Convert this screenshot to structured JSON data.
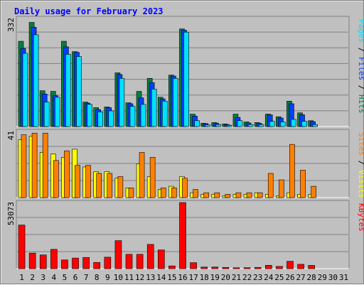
{
  "chart_data": {
    "type": "bar",
    "title": "Daily usage for February 2023",
    "categories": [
      "1",
      "2",
      "3",
      "4",
      "5",
      "6",
      "7",
      "8",
      "9",
      "10",
      "11",
      "12",
      "13",
      "14",
      "15",
      "16",
      "17",
      "18",
      "19",
      "20",
      "21",
      "22",
      "23",
      "24",
      "25",
      "26",
      "27",
      "28",
      "29",
      "30",
      "31"
    ],
    "weekend_days": [
      "4",
      "5",
      "11",
      "12",
      "18",
      "19",
      "25",
      "26"
    ],
    "panels": [
      {
        "name": "hits-files-pages",
        "ymax_label": "332",
        "ymax": 332,
        "series": [
          {
            "name": "Hits",
            "color": "#008040",
            "values": [
              262,
              320,
              110,
              108,
              262,
              230,
              75,
              58,
              60,
              165,
              73,
              108,
              148,
              90,
              158,
              300,
              38,
              10,
              12,
              8,
              38,
              14,
              12,
              38,
              30,
              78,
              42,
              18,
              0,
              0,
              0
            ]
          },
          {
            "name": "Files",
            "color": "#0040ff",
            "values": [
              240,
              305,
              100,
              95,
              245,
              228,
              72,
              52,
              58,
              160,
              70,
              88,
              135,
              85,
              155,
              296,
              32,
              9,
              10,
              6,
              28,
              11,
              10,
              36,
              26,
              70,
              36,
              15,
              0,
              0,
              0
            ]
          },
          {
            "name": "Pages",
            "color": "#00e0ff",
            "values": [
              225,
              282,
              75,
              90,
              222,
              215,
              68,
              45,
              48,
              148,
              62,
              68,
              115,
              78,
              148,
              290,
              18,
              5,
              6,
              4,
              18,
              6,
              6,
              16,
              14,
              22,
              16,
              6,
              0,
              0,
              0
            ]
          }
        ]
      },
      {
        "name": "visits-sites",
        "ymax_label": "41",
        "ymax": 41,
        "series": [
          {
            "name": "Visits",
            "color": "#ffff00",
            "values": [
              36,
              38,
              28,
              27,
              25,
              30,
              19,
              16,
              16,
              12,
              6,
              21,
              13,
              5,
              7,
              13,
              3,
              2,
              2,
              1,
              2,
              2,
              3,
              2,
              1,
              3,
              2,
              2,
              0,
              0,
              0
            ]
          },
          {
            "name": "Sites",
            "color": "#ff8000",
            "values": [
              39,
              40,
              40,
              23,
              29,
              20,
              20,
              15,
              15,
              13,
              6,
              28,
              25,
              6,
              6,
              12,
              5,
              3,
              3,
              2,
              3,
              3,
              3,
              15,
              11,
              33,
              17,
              7,
              0,
              0,
              0
            ]
          }
        ]
      },
      {
        "name": "kbytes",
        "ymax_label": "53073",
        "ymax": 53073,
        "series": [
          {
            "name": "KBytes",
            "color": "#ff0000",
            "values": [
              35000,
              12500,
              11000,
              15500,
              7000,
              8500,
              9000,
              5000,
              9200,
              22500,
              11500,
              11500,
              19500,
              15000,
              2200,
              53073,
              4800,
              1300,
              1300,
              1000,
              700,
              800,
              1000,
              2700,
              1800,
              5900,
              3500,
              2600,
              0,
              0,
              0
            ]
          }
        ]
      }
    ],
    "side_labels": {
      "top": [
        {
          "text": "Pages",
          "color": "#00e0ff"
        },
        {
          "text": " / ",
          "color": "#000000"
        },
        {
          "text": "Files",
          "color": "#0040ff"
        },
        {
          "text": " / ",
          "color": "#000000"
        },
        {
          "text": "Hits",
          "color": "#008040"
        }
      ],
      "middle": [
        {
          "text": "Sites",
          "color": "#ff8000"
        },
        {
          "text": " / ",
          "color": "#000000"
        },
        {
          "text": "Visits",
          "color": "#ffff00"
        }
      ],
      "bottom": [
        {
          "text": "KBytes",
          "color": "#ff0000"
        }
      ]
    },
    "colors": {
      "background": "#c0c0c0",
      "weekday_label": "#000000",
      "weekend_label": "#00804b",
      "grid": "#808080"
    }
  }
}
